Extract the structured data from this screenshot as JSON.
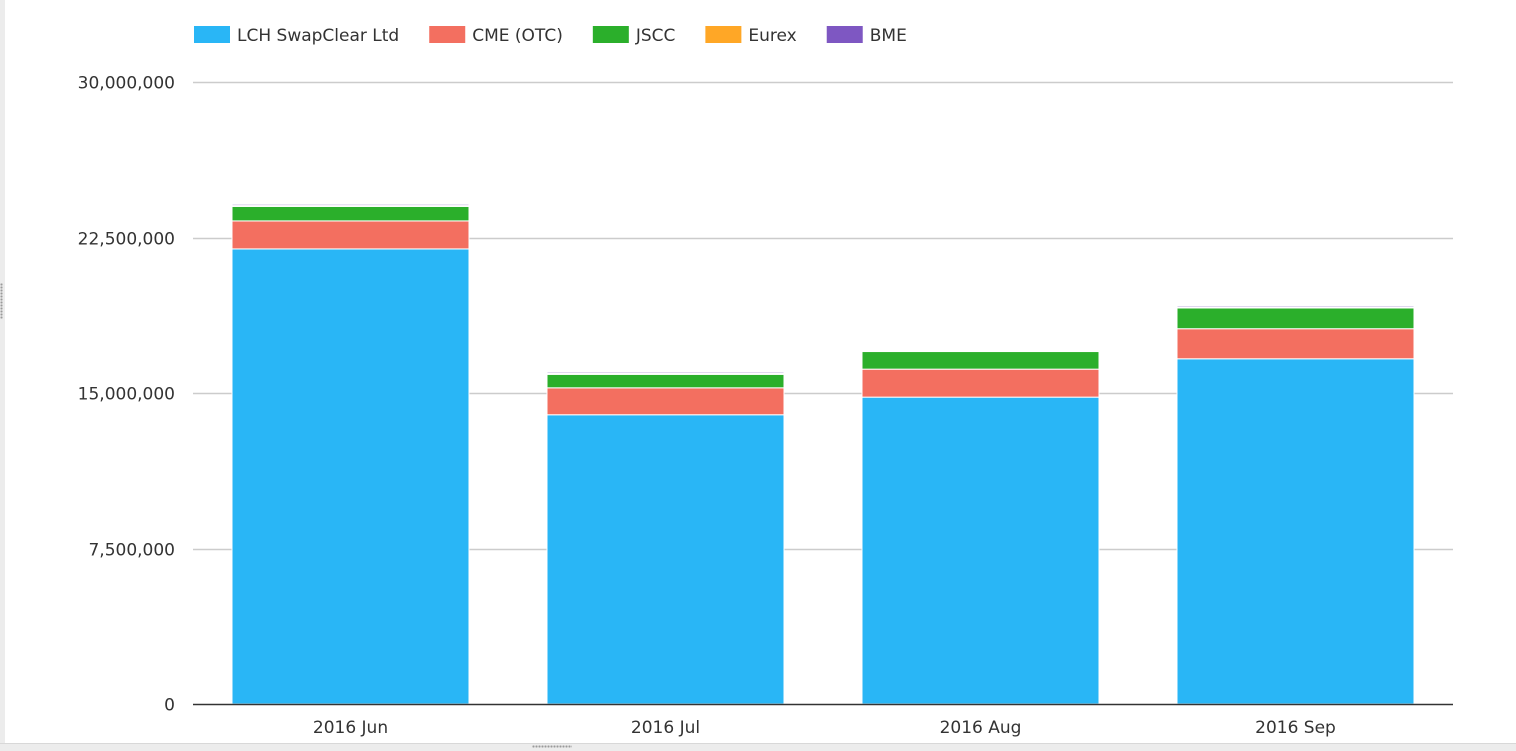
{
  "chart_data": {
    "type": "bar",
    "stacked": true,
    "categories": [
      "2016 Jun",
      "2016 Jul",
      "2016 Aug",
      "2016 Sep"
    ],
    "series": [
      {
        "name": "LCH SwapClear Ltd",
        "color": "#29b6f6",
        "values": [
          21950000,
          13950000,
          14800000,
          16650000
        ]
      },
      {
        "name": "CME (OTC)",
        "color": "#f36f60",
        "values": [
          1350000,
          1300000,
          1350000,
          1450000
        ]
      },
      {
        "name": "JSCC",
        "color": "#2baf2b",
        "values": [
          700000,
          650000,
          850000,
          1000000
        ]
      },
      {
        "name": "Eurex",
        "color": "#ffa726",
        "values": [
          40000,
          40000,
          30000,
          40000
        ]
      },
      {
        "name": "BME",
        "color": "#7e57c2",
        "values": [
          60000,
          60000,
          40000,
          60000
        ]
      }
    ],
    "ylim": [
      0,
      30000000
    ],
    "yticks": [
      {
        "value": 0,
        "label": "0"
      },
      {
        "value": 7500000,
        "label": "7,500,000"
      },
      {
        "value": 15000000,
        "label": "15,000,000"
      },
      {
        "value": 22500000,
        "label": "22,500,000"
      },
      {
        "value": 30000000,
        "label": "30,000,000"
      }
    ],
    "grid": true,
    "legend_position": "top-left",
    "title": "",
    "xlabel": "",
    "ylabel": ""
  }
}
